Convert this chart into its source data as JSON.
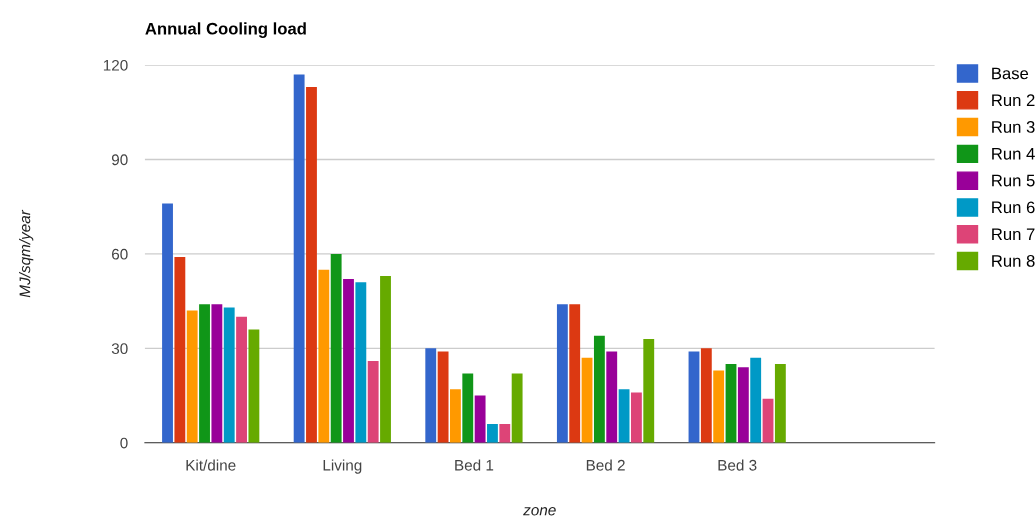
{
  "chart_data": {
    "type": "bar",
    "title": "Annual Cooling load",
    "xlabel": "zone",
    "ylabel": "MJ/sqm/year",
    "categories": [
      "Kit/dine",
      "Living",
      "Bed 1",
      "Bed 2",
      "Bed 3",
      null
    ],
    "series": [
      {
        "name": "Base",
        "color": "#3366cc",
        "values": [
          76,
          117,
          30,
          44,
          29,
          null
        ]
      },
      {
        "name": "Run 2",
        "color": "#dc3912",
        "values": [
          59,
          113,
          29,
          44,
          30,
          null
        ]
      },
      {
        "name": "Run 3",
        "color": "#ff9900",
        "values": [
          42,
          55,
          17,
          27,
          23,
          null
        ]
      },
      {
        "name": "Run 4",
        "color": "#109618",
        "values": [
          44,
          60,
          22,
          34,
          25,
          null
        ]
      },
      {
        "name": "Run 5",
        "color": "#990099",
        "values": [
          44,
          52,
          15,
          29,
          24,
          null
        ]
      },
      {
        "name": "Run 6",
        "color": "#0099c6",
        "values": [
          43,
          51,
          6,
          17,
          27,
          null
        ]
      },
      {
        "name": "Run 7",
        "color": "#dd4477",
        "values": [
          40,
          26,
          6,
          16,
          14,
          null
        ]
      },
      {
        "name": "Run 8",
        "color": "#66aa00",
        "values": [
          36,
          53,
          22,
          33,
          25,
          null
        ]
      }
    ],
    "ylim": [
      0,
      120
    ],
    "yticks": [
      0,
      30,
      60,
      90,
      120
    ],
    "grid": "y",
    "legend": "right"
  }
}
